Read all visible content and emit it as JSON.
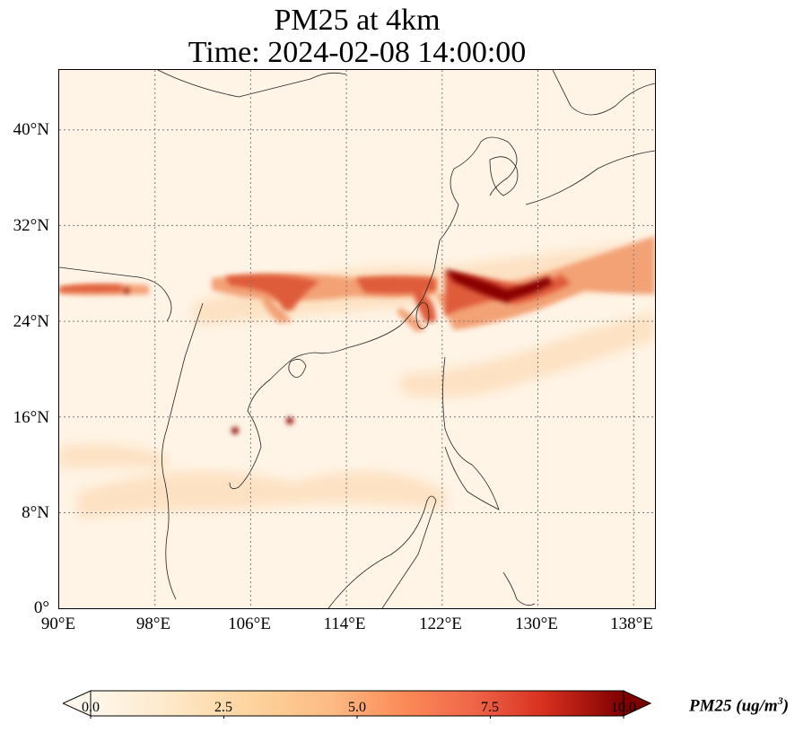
{
  "title": {
    "line1": "PM25 at 4km",
    "line2": "Time: 2024-02-08 14:00:00"
  },
  "map": {
    "variable": "PM25",
    "resolution": "4km",
    "time": "2024-02-08 14:00:00",
    "lon_range": [
      90,
      139
    ],
    "lat_range": [
      0,
      45
    ],
    "colormap": "OrRd",
    "gridlines": "dotted",
    "x_ticks": [
      "90°E",
      "98°E",
      "106°E",
      "114°E",
      "122°E",
      "130°E",
      "138°E"
    ],
    "y_ticks": [
      "40°N",
      "32°N",
      "24°N",
      "16°N",
      "8°N",
      "0°"
    ],
    "plume_colors": {
      "background": "#fff4e6",
      "light": "#fdd9b0",
      "medium": "#ef8a5c",
      "high": "#d7482f",
      "max": "#8b0000"
    }
  },
  "colorbar": {
    "ticks": [
      "0.0",
      "2.5",
      "5.0",
      "7.5",
      "10.0"
    ],
    "min": 0.0,
    "max": 10.0,
    "extend": "both",
    "label_main": "PM25 (ug/m",
    "label_sup": "3",
    "label_close": ")"
  }
}
